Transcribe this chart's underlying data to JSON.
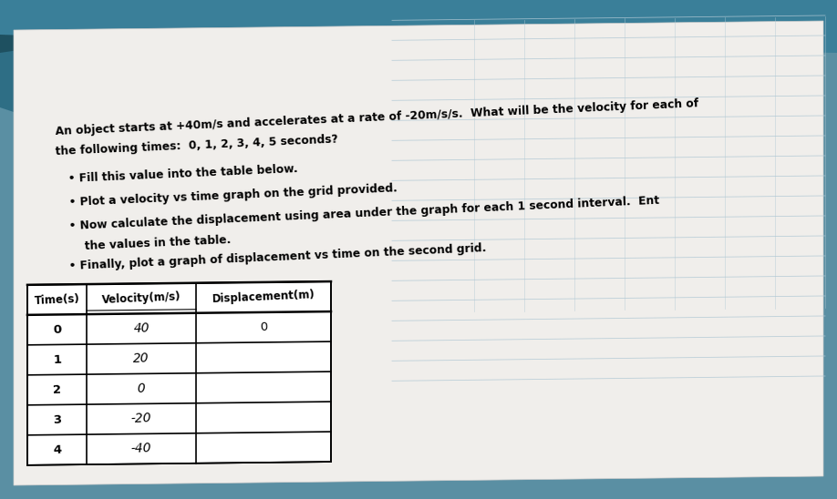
{
  "bg_color": "#5a8fa3",
  "paper_color": "#e8e8e8",
  "paper_color2": "#dcdcdc",
  "teal_dark": "#2d6a7e",
  "header_line1": "An object starts at +40m/s and accelerates at a rate of -20m/s/s.  What will be the velocity for each of",
  "header_line2": "the following times:  0, 1, 2, 3, 4, 5 seconds?",
  "bullet1": "Fill this value into the table below.",
  "bullet2": "Plot a velocity vs time graph on the grid provided.",
  "bullet3a": "Now calculate the displacement using area under the graph for each 1 second interval.  Ent",
  "bullet3b": "the values in the table.",
  "bullet4": "Finally, plot a graph of displacement vs time on the second grid.",
  "table_headers": [
    "Time(s)",
    "Velocity(m/s)",
    "Displacement(m)"
  ],
  "velocity_header_val": "40",
  "table_rows": [
    [
      "0",
      "40",
      "0"
    ],
    [
      "1",
      "20",
      ""
    ],
    [
      "2",
      "0",
      ""
    ],
    [
      "3",
      "-20",
      ""
    ],
    [
      "4",
      "-40",
      ""
    ]
  ],
  "grid_line_color": "#b0c8d4",
  "corner_color": "#1a4a5a",
  "rotation_deg": 2.5
}
